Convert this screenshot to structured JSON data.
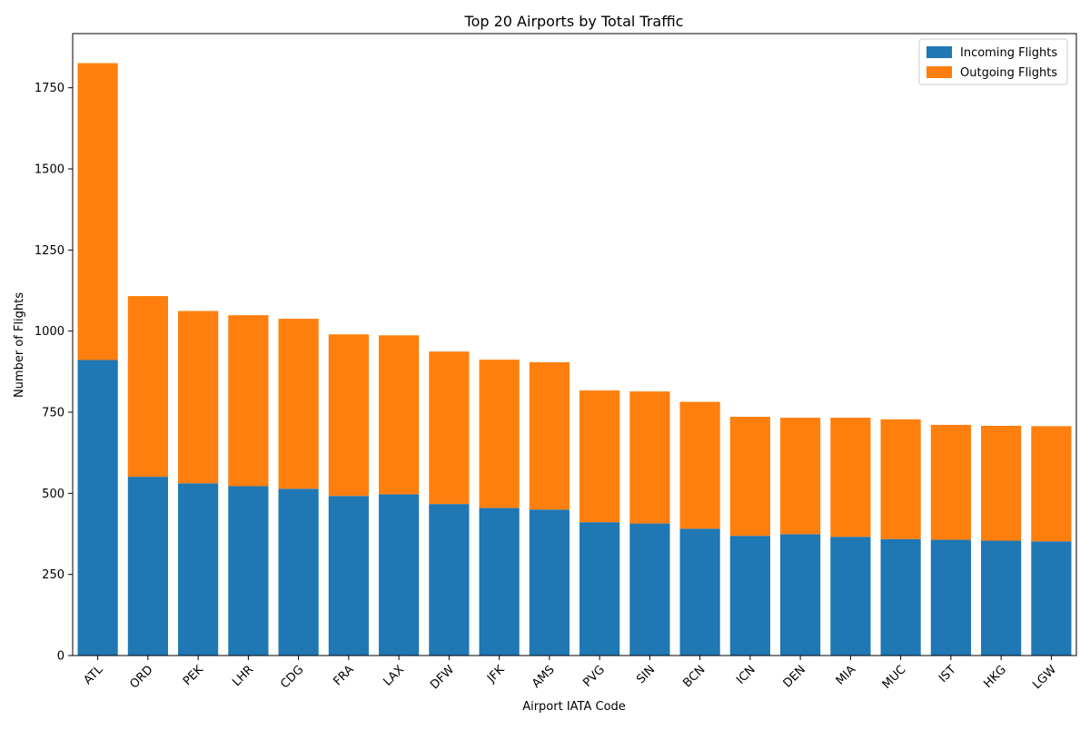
{
  "chart_data": {
    "type": "bar",
    "stacked": true,
    "title": "Top 20 Airports by Total Traffic",
    "xlabel": "Airport IATA Code",
    "ylabel": "Number of Flights",
    "ylim": [
      0,
      1917
    ],
    "yticks": [
      0,
      250,
      500,
      750,
      1000,
      1250,
      1500,
      1750
    ],
    "grid": false,
    "legend_position": "top-right",
    "categories": [
      "ATL",
      "ORD",
      "PEK",
      "LHR",
      "CDG",
      "FRA",
      "LAX",
      "DFW",
      "JFK",
      "AMS",
      "PVG",
      "SIN",
      "BCN",
      "ICN",
      "DEN",
      "MIA",
      "MUC",
      "IST",
      "HKG",
      "LGW"
    ],
    "series": [
      {
        "name": "Incoming Flights",
        "color": "#1f77b4",
        "values": [
          911,
          551,
          531,
          522,
          514,
          492,
          497,
          467,
          455,
          450,
          411,
          407,
          391,
          369,
          374,
          366,
          359,
          357,
          354,
          352
        ]
      },
      {
        "name": "Outgoing Flights",
        "color": "#ff7f0e",
        "values": [
          915,
          557,
          531,
          527,
          524,
          498,
          490,
          470,
          457,
          454,
          406,
          407,
          391,
          367,
          359,
          367,
          369,
          354,
          354,
          355
        ]
      }
    ]
  }
}
